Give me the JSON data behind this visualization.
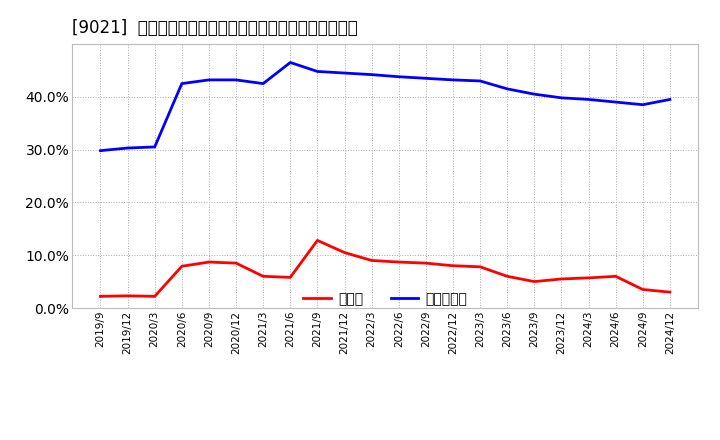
{
  "title": "[9021]  現預金、有利子負債の総資産に対する比率の推移",
  "x_labels": [
    "2019/9",
    "2019/12",
    "2020/3",
    "2020/6",
    "2020/9",
    "2020/12",
    "2021/3",
    "2021/6",
    "2021/9",
    "2021/12",
    "2022/3",
    "2022/6",
    "2022/9",
    "2022/12",
    "2023/3",
    "2023/6",
    "2023/9",
    "2023/12",
    "2024/3",
    "2024/6",
    "2024/9",
    "2024/12"
  ],
  "cash_ratio": [
    2.2,
    2.3,
    2.2,
    7.9,
    8.7,
    8.5,
    6.0,
    5.8,
    12.8,
    10.5,
    9.0,
    8.7,
    8.5,
    8.0,
    7.8,
    6.0,
    5.0,
    5.5,
    5.7,
    6.0,
    3.5,
    3.0
  ],
  "debt_ratio": [
    29.8,
    30.3,
    30.5,
    42.5,
    43.2,
    43.2,
    42.5,
    46.5,
    44.8,
    44.5,
    44.2,
    43.8,
    43.5,
    43.2,
    43.0,
    41.5,
    40.5,
    39.8,
    39.5,
    39.0,
    38.5,
    39.5
  ],
  "cash_color": "#ff0000",
  "debt_color": "#0000ff",
  "background_color": "#ffffff",
  "plot_bg_color": "#ffffff",
  "grid_color": "#aaaaaa",
  "ylim": [
    0,
    50
  ],
  "yticks": [
    0,
    10,
    20,
    30,
    40
  ],
  "legend_cash": "現預金",
  "legend_debt": "有利子負債",
  "line_width": 2.0,
  "title_fontsize": 12,
  "tick_fontsize": 7.5,
  "legend_fontsize": 10
}
